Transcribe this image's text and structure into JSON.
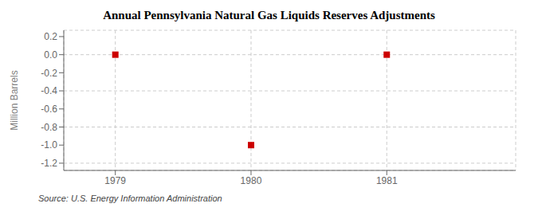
{
  "chart_data": {
    "type": "scatter",
    "title": "Annual Pennsylvania Natural Gas Liquids Reserves Adjustments",
    "ylabel": "Million Barrels",
    "annotations": [
      "Source: U.S. Energy Information Administration"
    ],
    "x": [
      1979,
      1980,
      1981
    ],
    "values": [
      0.0,
      -1.0,
      0.0
    ],
    "xlim": [
      1978.62,
      1981.95
    ],
    "ylim": [
      -1.28,
      0.27
    ],
    "xticks": [
      1979,
      1980,
      1981
    ],
    "yticks": [
      0.2,
      {
        "value": 0,
        "label": "0.0"
      },
      -0.2,
      -0.4,
      -0.6,
      -0.8,
      {
        "value": -1,
        "label": "-1.0"
      },
      -1.2
    ],
    "color": "#cc0000",
    "marker": "square",
    "grid": true
  }
}
